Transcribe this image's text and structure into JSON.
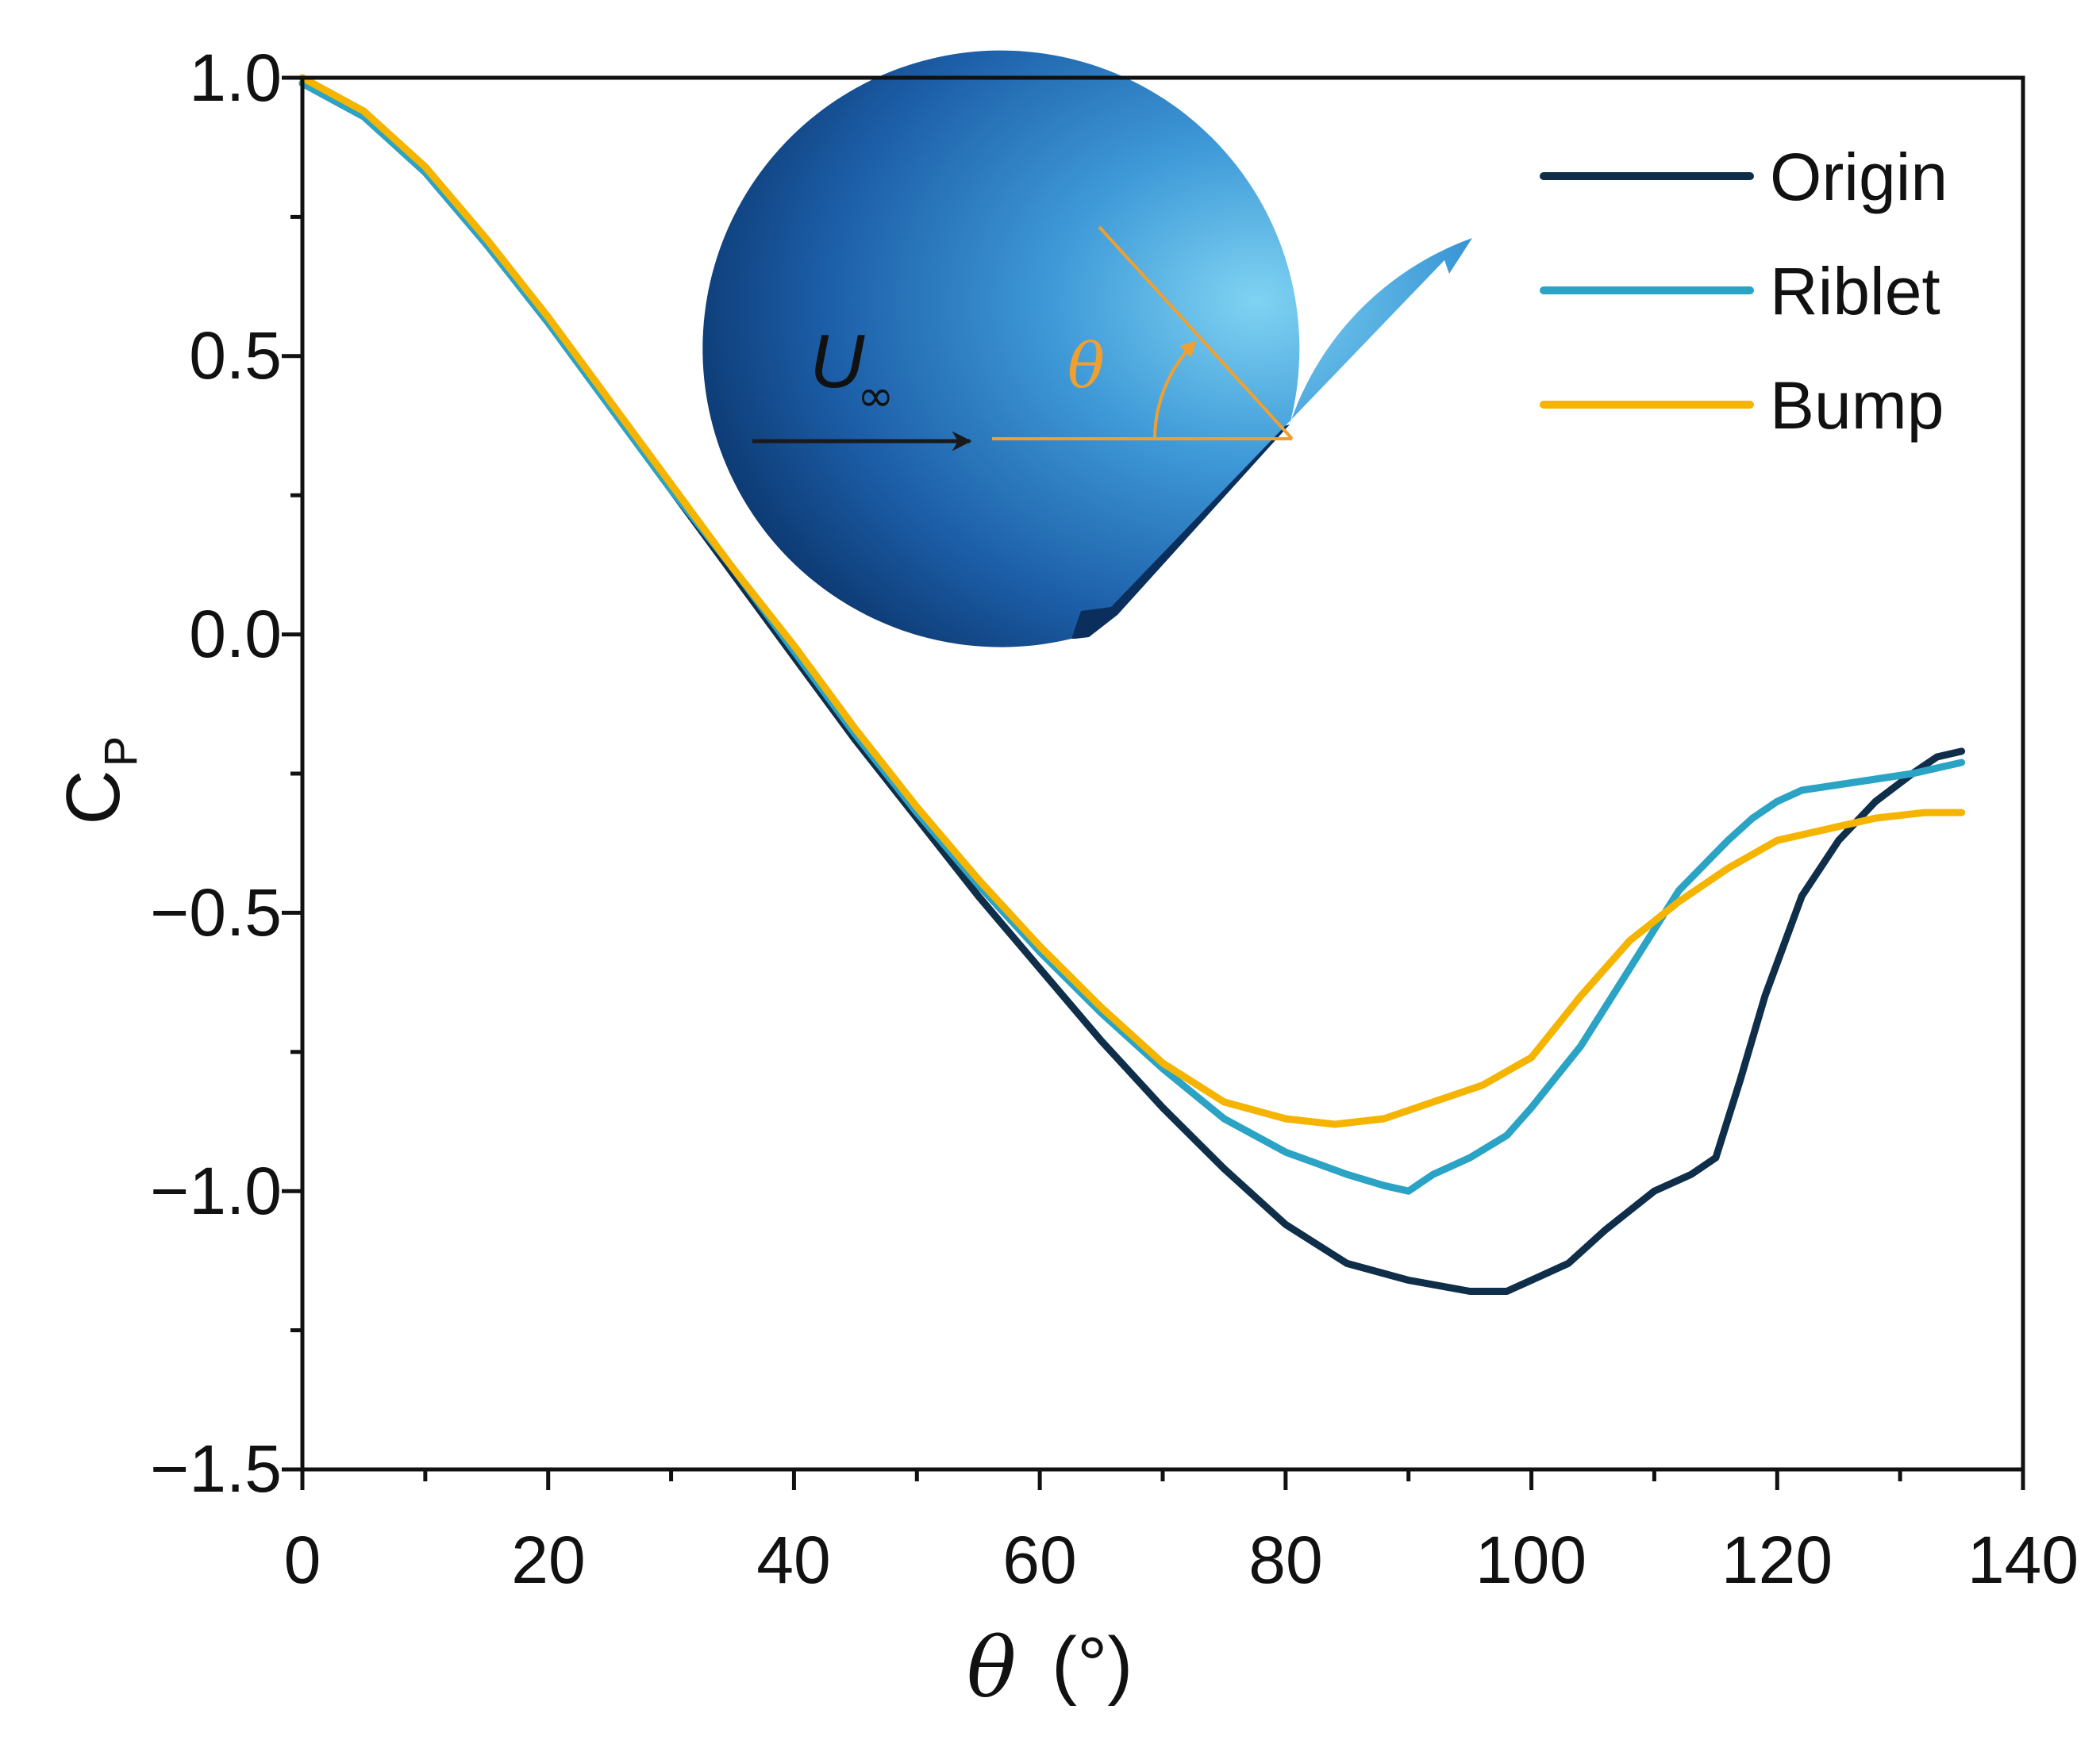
{
  "chart_data": {
    "type": "line",
    "title": "",
    "xlabel_symbol": "θ",
    "xlabel_unit": "(°)",
    "ylabel_main": "C",
    "ylabel_sub": "P",
    "xlim": [
      0,
      140
    ],
    "ylim": [
      -1.5,
      1.0
    ],
    "xticks": [
      0,
      20,
      40,
      60,
      80,
      100,
      120,
      140
    ],
    "yticks": [
      -1.5,
      -1.0,
      -0.5,
      0.0,
      0.5,
      1.0
    ],
    "xtick_labels": [
      "0",
      "20",
      "40",
      "60",
      "80",
      "100",
      "120",
      "140"
    ],
    "ytick_labels": [
      "−1.5",
      "−1.0",
      "−0.5",
      "0.0",
      "0.5",
      "1.0"
    ],
    "grid": false,
    "legend_position": "top-right",
    "series": [
      {
        "name": "Origin",
        "color": "#0f2e4a",
        "x": [
          0,
          5,
          10,
          15,
          20,
          25,
          30,
          35,
          40,
          45,
          50,
          55,
          60,
          65,
          70,
          75,
          80,
          85,
          90,
          95,
          98,
          100,
          103,
          106,
          110,
          113,
          115,
          117,
          119,
          122,
          125,
          128,
          131,
          133,
          135
        ],
        "y": [
          0.99,
          0.93,
          0.83,
          0.7,
          0.56,
          0.41,
          0.26,
          0.11,
          -0.04,
          -0.19,
          -0.33,
          -0.47,
          -0.6,
          -0.73,
          -0.85,
          -0.96,
          -1.06,
          -1.13,
          -1.16,
          -1.18,
          -1.18,
          -1.16,
          -1.13,
          -1.07,
          -1.0,
          -0.97,
          -0.94,
          -0.8,
          -0.65,
          -0.47,
          -0.37,
          -0.3,
          -0.25,
          -0.22,
          -0.21
        ]
      },
      {
        "name": "Riblet",
        "color": "#2aa3c4",
        "x": [
          0,
          5,
          10,
          15,
          20,
          25,
          30,
          35,
          40,
          45,
          50,
          55,
          60,
          65,
          70,
          75,
          80,
          85,
          88,
          90,
          92,
          95,
          98,
          100,
          104,
          108,
          112,
          116,
          118,
          120,
          122,
          125,
          128,
          131,
          135
        ],
        "y": [
          0.99,
          0.93,
          0.83,
          0.7,
          0.56,
          0.41,
          0.26,
          0.12,
          -0.03,
          -0.18,
          -0.32,
          -0.45,
          -0.57,
          -0.68,
          -0.78,
          -0.87,
          -0.93,
          -0.97,
          -0.99,
          -1.0,
          -0.97,
          -0.94,
          -0.9,
          -0.85,
          -0.74,
          -0.6,
          -0.46,
          -0.37,
          -0.33,
          -0.3,
          -0.28,
          -0.27,
          -0.26,
          -0.25,
          -0.23
        ]
      },
      {
        "name": "Bump",
        "color": "#f5b400",
        "x": [
          0,
          5,
          10,
          15,
          20,
          25,
          30,
          35,
          40,
          45,
          50,
          55,
          60,
          65,
          70,
          75,
          80,
          84,
          88,
          92,
          96,
          100,
          104,
          108,
          112,
          116,
          120,
          124,
          128,
          132,
          135
        ],
        "y": [
          1.0,
          0.94,
          0.84,
          0.71,
          0.57,
          0.42,
          0.27,
          0.12,
          -0.02,
          -0.17,
          -0.31,
          -0.44,
          -0.56,
          -0.67,
          -0.77,
          -0.84,
          -0.87,
          -0.88,
          -0.87,
          -0.84,
          -0.81,
          -0.76,
          -0.65,
          -0.55,
          -0.48,
          -0.42,
          -0.37,
          -0.35,
          -0.33,
          -0.32,
          -0.32
        ]
      }
    ],
    "annotations": {
      "flow_label": "U",
      "flow_subscript": "∞",
      "angle_label": "θ"
    }
  }
}
